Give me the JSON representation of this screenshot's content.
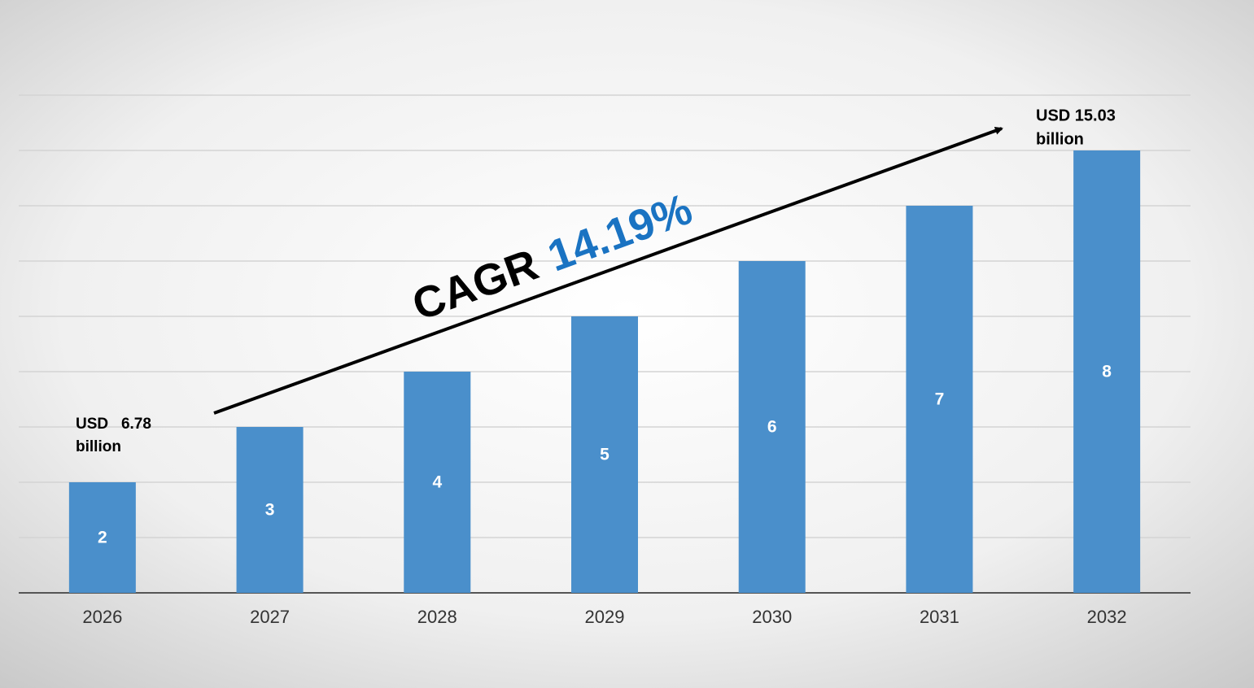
{
  "chart_data": {
    "type": "bar",
    "categories": [
      "2026",
      "2027",
      "2028",
      "2029",
      "2030",
      "2031",
      "2032"
    ],
    "values": [
      2,
      3,
      4,
      5,
      6,
      7,
      8
    ],
    "color": "#4a8fcb",
    "ylim": [
      0,
      9
    ],
    "yticks": [
      0,
      1,
      2,
      3,
      4,
      5,
      6,
      7,
      8,
      9
    ],
    "grid": true,
    "annotations": {
      "start": [
        "USD   6.78",
        "billion"
      ],
      "end": [
        "USD 15.03",
        "billion"
      ],
      "cagr_label": "CAGR",
      "cagr_value": "14.19%"
    }
  }
}
